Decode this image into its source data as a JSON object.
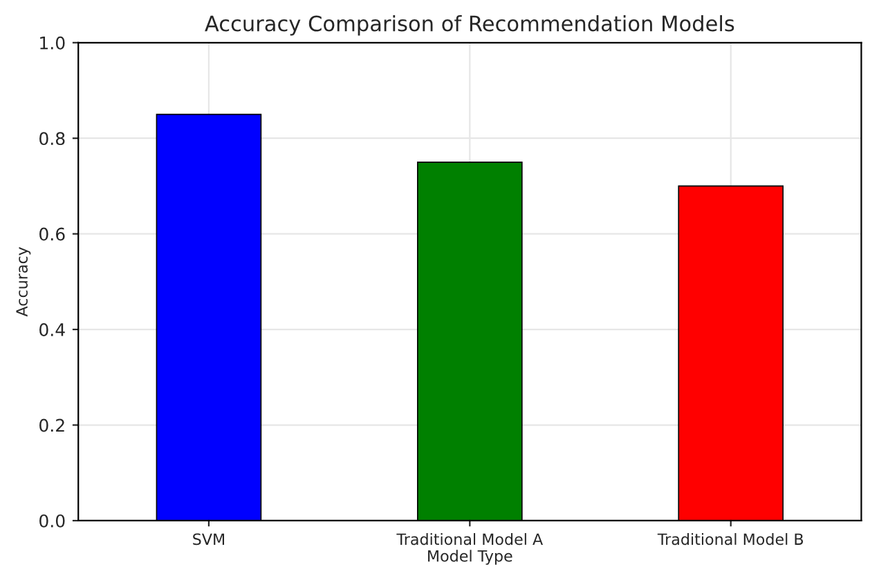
{
  "chart_data": {
    "type": "bar",
    "title": "Accuracy Comparison of Recommendation Models",
    "xlabel": "Model Type",
    "ylabel": "Accuracy",
    "categories": [
      "SVM",
      "Traditional Model A",
      "Traditional Model B"
    ],
    "values": [
      0.85,
      0.75,
      0.7
    ],
    "colors": [
      "#0000ff",
      "#008000",
      "#ff0000"
    ],
    "ylim": [
      0,
      1.0
    ],
    "yticks": [
      {
        "value": 0,
        "label": "0.0"
      },
      0.2,
      0.4,
      0.6,
      0.8,
      {
        "value": 1.0,
        "label": "1.0"
      }
    ],
    "grid": true
  }
}
